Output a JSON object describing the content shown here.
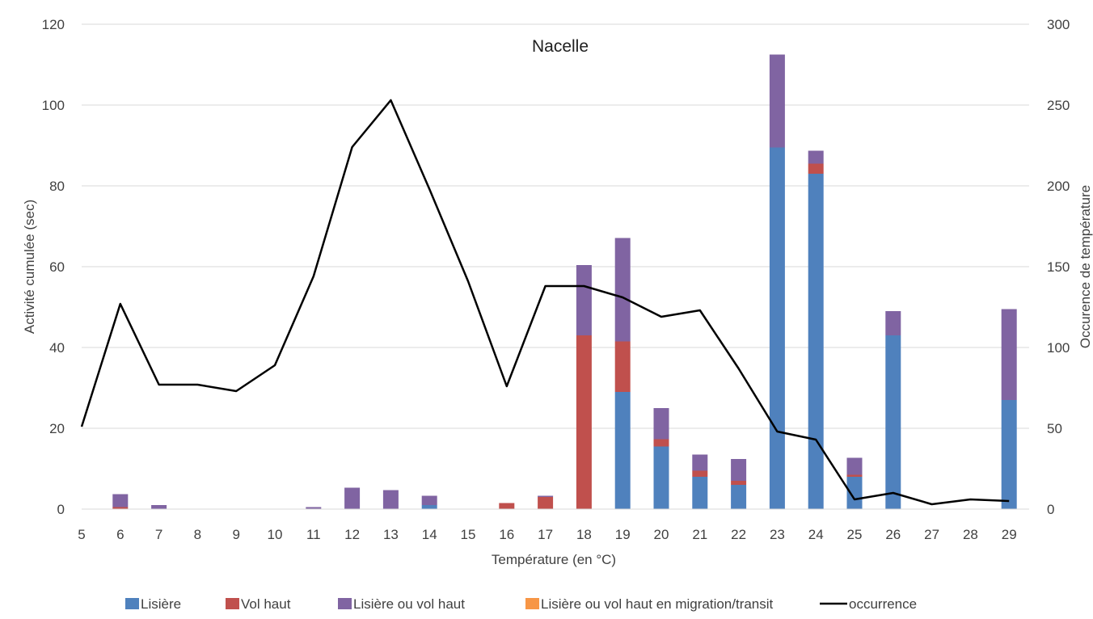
{
  "chart_data": {
    "type": "bar",
    "stacked": true,
    "title": "Nacelle",
    "xlabel": "Température (en °C)",
    "ylabel": "Activité cumulée (sec)",
    "y2label": "Occurence de température",
    "categories": [
      "5",
      "6",
      "7",
      "8",
      "9",
      "10",
      "11",
      "12",
      "13",
      "14",
      "15",
      "16",
      "17",
      "18",
      "19",
      "20",
      "21",
      "22",
      "23",
      "24",
      "25",
      "26",
      "27",
      "28",
      "29"
    ],
    "ylim": [
      0,
      120
    ],
    "yticks": [
      0,
      20,
      40,
      60,
      80,
      100,
      120
    ],
    "y2lim": [
      0,
      300
    ],
    "y2ticks": [
      0,
      50,
      100,
      150,
      200,
      250,
      300
    ],
    "grid": true,
    "legend_position": "bottom",
    "series": [
      {
        "name": "Lisière",
        "color": "#4f81bd",
        "axis": "left",
        "kind": "bar",
        "values": [
          0,
          0,
          0,
          0,
          0,
          0,
          0,
          0,
          0,
          1,
          0,
          0,
          0,
          0,
          29,
          15.5,
          8,
          6,
          89.5,
          83,
          8,
          43,
          0,
          0,
          27
        ]
      },
      {
        "name": "Vol haut",
        "color": "#c0504d",
        "axis": "left",
        "kind": "bar",
        "values": [
          0,
          0.5,
          0,
          0,
          0,
          0,
          0,
          0,
          0,
          0,
          0,
          1.5,
          3,
          43,
          12.5,
          1.8,
          1.5,
          1,
          0,
          2.5,
          0.5,
          0,
          0,
          0,
          0
        ]
      },
      {
        "name": "Lisière ou vol haut",
        "color": "#8064a2",
        "axis": "left",
        "kind": "bar",
        "values": [
          0,
          3.2,
          1,
          0,
          0,
          0,
          0.5,
          5.3,
          4.7,
          2.3,
          0,
          0,
          0.3,
          17.4,
          25.6,
          7.7,
          4,
          5.4,
          23,
          3.2,
          4.2,
          6,
          0,
          0,
          22.5
        ]
      },
      {
        "name": "Lisière ou vol haut en migration/transit",
        "color": "#f79646",
        "axis": "left",
        "kind": "bar",
        "values": [
          0,
          0,
          0,
          0,
          0,
          0,
          0,
          0,
          0,
          0,
          0,
          0,
          0,
          0,
          0,
          0,
          0,
          0,
          0,
          0,
          0,
          0,
          0,
          0,
          0
        ]
      },
      {
        "name": "occurrence",
        "color": "#000000",
        "axis": "right",
        "kind": "line",
        "values": [
          51,
          127,
          77,
          77,
          73,
          89,
          144,
          224,
          253,
          198,
          141,
          76,
          138,
          138,
          131,
          119,
          123,
          87,
          48,
          43,
          6,
          10,
          3,
          6,
          5
        ]
      }
    ]
  }
}
